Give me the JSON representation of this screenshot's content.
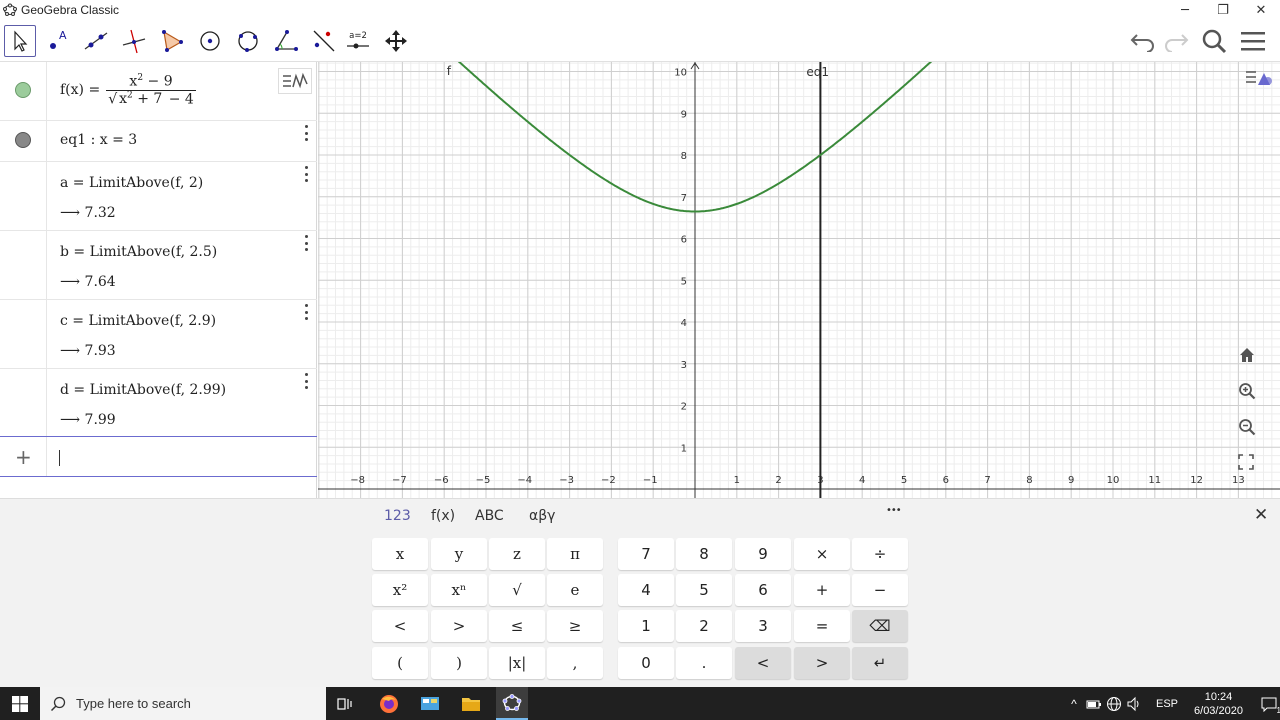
{
  "window": {
    "title": "GeoGebra Classic",
    "minimize": "─",
    "maximize": "❐",
    "close": "✕"
  },
  "toolbar": {
    "tools": [
      "move-tool",
      "point-tool",
      "line-tool",
      "perpendicular-line-tool",
      "polygon-tool",
      "circle-center-point-tool",
      "conic-tool",
      "angle-tool",
      "reflect-tool",
      "slider-tool",
      "move-graphics-tool"
    ],
    "slider_label": "a=2"
  },
  "algebra": {
    "items": [
      {
        "lhs": "f(x) =",
        "num": "x",
        "num_exp": "2",
        "num_rest": " − 9",
        "den_root": "x",
        "den_exp": "2",
        "den_root_rest": " + 7",
        "den_rest": " − 4",
        "color": "#9ccc9c"
      },
      {
        "text": "eq1 : x = 3",
        "color": "#888888"
      },
      {
        "text": "a = LimitAbove(f, 2)",
        "result": "7.32"
      },
      {
        "text": "b = LimitAbove(f, 2.5)",
        "result": "7.64"
      },
      {
        "text": "c = LimitAbove(f, 2.9)",
        "result": "7.93"
      },
      {
        "text": "d = LimitAbove(f, 2.99)",
        "result": "7.99"
      }
    ],
    "arrow": "⟶",
    "input_plus": "+"
  },
  "graphics": {
    "curve_label": "f",
    "line_label": "eq1",
    "x_ticks": [
      "−8",
      "−7",
      "−6",
      "−5",
      "−4",
      "−3",
      "−2",
      "−1",
      "1",
      "2",
      "3",
      "4",
      "5",
      "6",
      "7",
      "8",
      "9",
      "10",
      "11",
      "12",
      "13"
    ],
    "y_ticks": [
      "1",
      "2",
      "3",
      "4",
      "5",
      "6",
      "7",
      "8",
      "9",
      "10"
    ],
    "curve_color": "#3a8a3a",
    "line_color": "#222222"
  },
  "keyboard": {
    "tabs": [
      "123",
      "f(x)",
      "ABC",
      "αβγ"
    ],
    "more": "•••",
    "close": "✕",
    "left_keys": [
      [
        "x",
        "y",
        "z",
        "π"
      ],
      [
        "x²",
        "xⁿ",
        "√",
        "e"
      ],
      [
        "<",
        ">",
        "≤",
        "≥"
      ],
      [
        "(",
        ")",
        "|x|",
        ","
      ]
    ],
    "right_keys": [
      [
        "7",
        "8",
        "9",
        "×",
        "÷"
      ],
      [
        "4",
        "5",
        "6",
        "+",
        "−"
      ],
      [
        "1",
        "2",
        "3",
        "=",
        "⌫"
      ],
      [
        "0",
        ".",
        "<",
        ">",
        "↵"
      ]
    ]
  },
  "taskbar": {
    "search_placeholder": "Type here to search",
    "language": "ESP",
    "time": "10:24",
    "date": "6/03/2020",
    "notifications": "1"
  }
}
